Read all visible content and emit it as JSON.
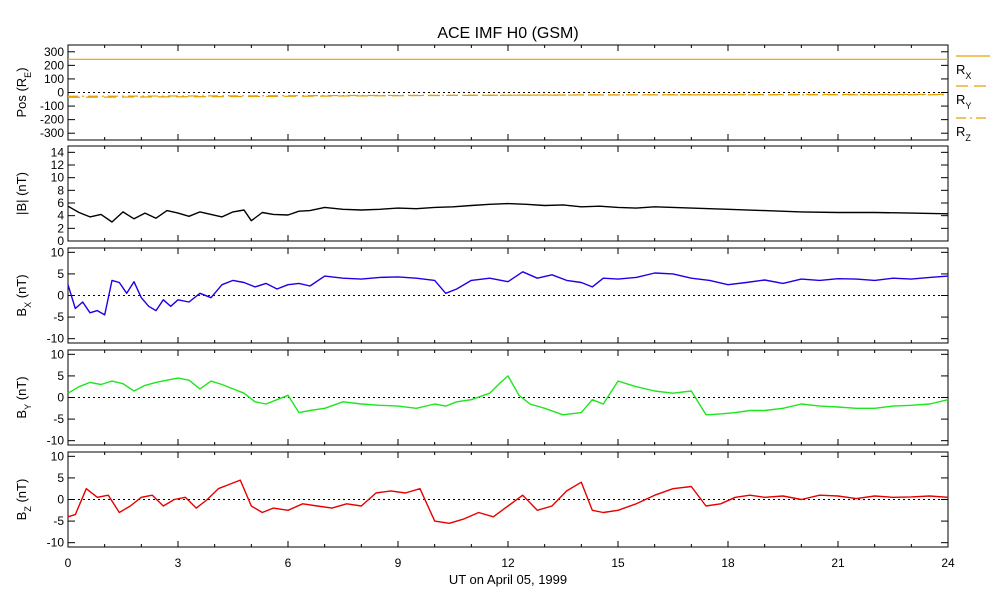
{
  "colors": {
    "position": "#e6a000",
    "b_total": "#000000",
    "bx": "#1f00e6",
    "by": "#1ee61e",
    "bz": "#e60000",
    "zero_line": "#000000"
  },
  "chart_data": {
    "type": "line",
    "title": "ACE IMF H0 (GSM)",
    "xlabel": "UT on April 05, 1999",
    "x_ticks": [
      "0",
      "3",
      "6",
      "9",
      "12",
      "15",
      "18",
      "21",
      "24"
    ],
    "x_range": [
      0,
      24
    ],
    "panels": [
      {
        "id": "pos",
        "ylabel": "Pos (RE)",
        "ylabel_main": "Pos (R",
        "ylabel_sub": "E",
        "ylabel_tail": ")",
        "ylim": [
          -350,
          350
        ],
        "y_ticks": [
          300,
          200,
          100,
          0,
          -100,
          -200,
          -300
        ],
        "y_tick_labels": [
          "300",
          "200",
          "100",
          "0",
          "-100",
          "-200",
          "-300"
        ],
        "zero_line": true,
        "series": [
          {
            "name": "RX",
            "label_main": "R",
            "label_sub": "X",
            "dash": "none",
            "x": [
              0,
              24
            ],
            "y": [
              245,
              245
            ]
          },
          {
            "name": "RY",
            "label_main": "R",
            "label_sub": "Y",
            "dash": "12,6",
            "x": [
              0,
              2,
              4,
              6,
              8,
              10,
              12,
              14,
              16,
              18,
              20,
              22,
              24
            ],
            "y": [
              -35,
              -33,
              -30,
              -28,
              -25,
              -22,
              -20,
              -18,
              -17,
              -16,
              -15,
              -15,
              -14
            ]
          },
          {
            "name": "RZ",
            "label_main": "R",
            "label_sub": "Z",
            "dash": "10,4,2,4",
            "x": [
              0,
              4,
              8,
              12,
              16,
              20,
              24
            ],
            "y": [
              -28,
              -25,
              -22,
              -20,
              -18,
              -17,
              -16
            ]
          }
        ]
      },
      {
        "id": "btot",
        "ylabel": "|B| (nT)",
        "ylabel_main": "|B| (nT)",
        "ylabel_sub": "",
        "ylabel_tail": "",
        "ylim": [
          0,
          15
        ],
        "y_ticks": [
          0,
          2,
          4,
          6,
          8,
          10,
          12,
          14
        ],
        "y_tick_labels": [
          "0",
          "2",
          "4",
          "6",
          "8",
          "10",
          "12",
          "14"
        ],
        "zero_line": false,
        "series": [
          {
            "name": "|B|",
            "x": [
              0,
              0.3,
              0.6,
              0.9,
              1.2,
              1.5,
              1.8,
              2.1,
              2.4,
              2.7,
              3.0,
              3.3,
              3.6,
              3.9,
              4.2,
              4.5,
              4.8,
              5.0,
              5.3,
              5.6,
              6.0,
              6.3,
              6.6,
              7.0,
              7.5,
              8.0,
              8.5,
              9.0,
              9.5,
              10.0,
              10.5,
              11.0,
              11.5,
              12.0,
              12.5,
              13.0,
              13.5,
              14.0,
              14.5,
              15.0,
              15.5,
              16.0,
              17.0,
              18.0,
              19.0,
              20.0,
              21.0,
              22.0,
              23.0,
              24.0
            ],
            "y": [
              5.5,
              4.5,
              3.8,
              4.2,
              3.0,
              4.6,
              3.5,
              4.4,
              3.6,
              4.8,
              4.4,
              3.9,
              4.6,
              4.2,
              3.8,
              4.6,
              4.9,
              3.2,
              4.5,
              4.2,
              4.1,
              4.7,
              4.8,
              5.3,
              5.0,
              4.9,
              5.0,
              5.2,
              5.1,
              5.3,
              5.4,
              5.6,
              5.8,
              5.9,
              5.8,
              5.6,
              5.7,
              5.4,
              5.5,
              5.3,
              5.2,
              5.4,
              5.2,
              5.0,
              4.8,
              4.6,
              4.5,
              4.5,
              4.4,
              4.3
            ]
          }
        ]
      },
      {
        "id": "bx",
        "ylabel": "BX (nT)",
        "ylabel_main": "B",
        "ylabel_sub": "X",
        "ylabel_tail": " (nT)",
        "ylim": [
          -11,
          11
        ],
        "y_ticks": [
          10,
          5,
          0,
          -5,
          -10
        ],
        "y_tick_labels": [
          "10",
          "5",
          "0",
          "-5",
          "-10"
        ],
        "zero_line": true,
        "series": [
          {
            "name": "BX",
            "x": [
              0,
              0.2,
              0.4,
              0.6,
              0.8,
              1.0,
              1.2,
              1.4,
              1.6,
              1.8,
              2.0,
              2.2,
              2.4,
              2.6,
              2.8,
              3.0,
              3.3,
              3.6,
              3.9,
              4.2,
              4.5,
              4.8,
              5.1,
              5.4,
              5.7,
              6.0,
              6.3,
              6.6,
              7.0,
              7.5,
              8.0,
              8.5,
              9.0,
              9.5,
              10.0,
              10.3,
              10.6,
              11.0,
              11.5,
              12.0,
              12.4,
              12.8,
              13.2,
              13.6,
              14.0,
              14.3,
              14.6,
              15.0,
              15.5,
              16.0,
              16.5,
              17.0,
              17.5,
              18.0,
              18.5,
              19.0,
              19.5,
              20.0,
              20.5,
              21.0,
              21.5,
              22.0,
              22.5,
              23.0,
              23.5,
              24.0
            ],
            "y": [
              2.5,
              -3.0,
              -1.5,
              -4.0,
              -3.5,
              -4.5,
              3.5,
              3.0,
              0.5,
              3.2,
              -0.5,
              -2.5,
              -3.5,
              -1.0,
              -2.5,
              -1.0,
              -1.5,
              0.5,
              -0.5,
              2.5,
              3.5,
              3.0,
              2.0,
              2.8,
              1.5,
              2.5,
              2.8,
              2.2,
              4.5,
              4.0,
              3.8,
              4.2,
              4.3,
              4.0,
              3.5,
              0.5,
              1.5,
              3.5,
              4.0,
              3.2,
              5.5,
              4.0,
              4.8,
              3.5,
              3.0,
              2.0,
              4.0,
              3.8,
              4.2,
              5.2,
              5.0,
              4.0,
              3.5,
              2.5,
              3.0,
              3.6,
              2.8,
              3.8,
              3.5,
              3.9,
              3.8,
              3.5,
              4.0,
              3.8,
              4.2,
              4.5
            ]
          }
        ]
      },
      {
        "id": "by",
        "ylabel": "BY (nT)",
        "ylabel_main": "B",
        "ylabel_sub": "Y",
        "ylabel_tail": " (nT)",
        "ylim": [
          -11,
          11
        ],
        "y_ticks": [
          10,
          5,
          0,
          -5,
          -10
        ],
        "y_tick_labels": [
          "10",
          "5",
          "0",
          "-5",
          "-10"
        ],
        "zero_line": true,
        "series": [
          {
            "name": "BY",
            "x": [
              0,
              0.3,
              0.6,
              0.9,
              1.2,
              1.5,
              1.8,
              2.1,
              2.4,
              2.7,
              3.0,
              3.3,
              3.6,
              3.9,
              4.2,
              4.5,
              4.8,
              5.1,
              5.4,
              5.7,
              6.0,
              6.3,
              6.6,
              7.0,
              7.5,
              8.0,
              8.5,
              9.0,
              9.5,
              10.0,
              10.3,
              10.6,
              11.0,
              11.5,
              11.8,
              12.0,
              12.3,
              12.6,
              13.0,
              13.5,
              14.0,
              14.3,
              14.6,
              15.0,
              15.5,
              16.0,
              16.5,
              17.0,
              17.4,
              17.8,
              18.2,
              18.6,
              19.0,
              19.5,
              20.0,
              20.5,
              21.0,
              21.5,
              22.0,
              22.5,
              23.0,
              23.5,
              24.0
            ],
            "y": [
              1.0,
              2.5,
              3.5,
              3.0,
              3.8,
              3.2,
              1.5,
              2.8,
              3.5,
              4.0,
              4.5,
              4.0,
              2.0,
              3.8,
              3.0,
              2.0,
              1.0,
              -1.0,
              -1.5,
              -0.5,
              0.5,
              -3.5,
              -3.0,
              -2.5,
              -1.0,
              -1.5,
              -1.8,
              -2.0,
              -2.5,
              -1.5,
              -2.0,
              -1.0,
              -0.5,
              1.0,
              3.5,
              5.0,
              0.5,
              -1.5,
              -2.5,
              -4.0,
              -3.5,
              -0.5,
              -1.5,
              3.8,
              2.5,
              1.5,
              1.0,
              1.5,
              -4.0,
              -3.8,
              -3.5,
              -3.0,
              -3.0,
              -2.5,
              -1.5,
              -2.0,
              -2.2,
              -2.5,
              -2.5,
              -2.0,
              -1.8,
              -1.5,
              -0.5
            ]
          }
        ]
      },
      {
        "id": "bz",
        "ylabel": "BZ (nT)",
        "ylabel_main": "B",
        "ylabel_sub": "Z",
        "ylabel_tail": " (nT)",
        "ylim": [
          -11,
          11
        ],
        "y_ticks": [
          10,
          5,
          0,
          -5,
          -10
        ],
        "y_tick_labels": [
          "10",
          "5",
          "0",
          "-5",
          "-10"
        ],
        "zero_line": true,
        "series": [
          {
            "name": "BZ",
            "x": [
              0,
              0.2,
              0.5,
              0.8,
              1.1,
              1.4,
              1.7,
              2.0,
              2.3,
              2.6,
              2.9,
              3.2,
              3.5,
              3.8,
              4.1,
              4.4,
              4.7,
              5.0,
              5.3,
              5.6,
              6.0,
              6.4,
              6.8,
              7.2,
              7.6,
              8.0,
              8.4,
              8.8,
              9.2,
              9.6,
              10.0,
              10.4,
              10.8,
              11.2,
              11.6,
              12.0,
              12.4,
              12.8,
              13.2,
              13.6,
              14.0,
              14.3,
              14.6,
              15.0,
              15.5,
              16.0,
              16.5,
              17.0,
              17.4,
              17.8,
              18.2,
              18.6,
              19.0,
              19.5,
              20.0,
              20.5,
              21.0,
              21.5,
              22.0,
              22.5,
              23.0,
              23.5,
              24.0
            ],
            "y": [
              -4.0,
              -3.5,
              2.5,
              0.5,
              1.0,
              -3.0,
              -1.5,
              0.5,
              1.0,
              -1.5,
              0.0,
              0.5,
              -2.0,
              0.0,
              2.5,
              3.5,
              4.5,
              -1.5,
              -3.0,
              -2.0,
              -2.5,
              -1.0,
              -1.5,
              -2.0,
              -1.0,
              -1.5,
              1.5,
              2.0,
              1.5,
              2.5,
              -5.0,
              -5.5,
              -4.5,
              -3.0,
              -4.0,
              -1.5,
              1.0,
              -2.5,
              -1.5,
              2.0,
              4.0,
              -2.5,
              -3.0,
              -2.5,
              -1.0,
              1.0,
              2.5,
              3.0,
              -1.5,
              -1.0,
              0.5,
              1.0,
              0.5,
              0.8,
              0.0,
              1.0,
              0.8,
              0.2,
              0.8,
              0.5,
              0.6,
              0.8,
              0.5
            ]
          }
        ]
      }
    ],
    "legend": {
      "placement": "right of position panel",
      "entries": [
        "RX",
        "RY",
        "RZ"
      ]
    },
    "grid": false
  }
}
